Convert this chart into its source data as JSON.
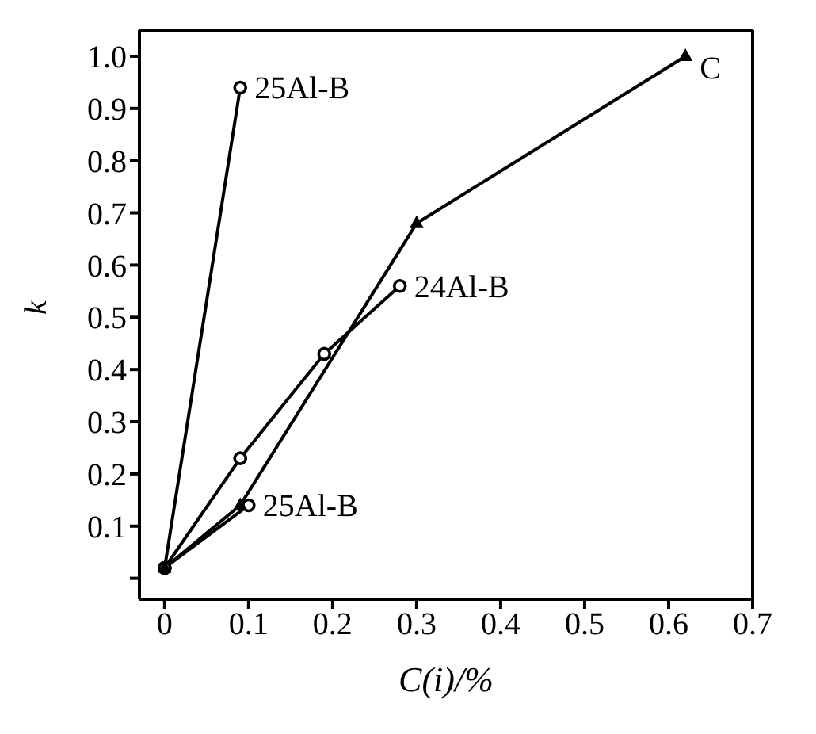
{
  "chart_data": {
    "type": "line",
    "xlabel": "C(i)/%",
    "ylabel": "k",
    "xlim": [
      -0.03,
      0.7
    ],
    "xticks": [
      0,
      0.1,
      0.2,
      0.3,
      0.4,
      0.5,
      0.6,
      0.7
    ],
    "ylim": [
      -0.04,
      1.05
    ],
    "yticks": [
      {
        "value": 0,
        "label": null
      },
      0.1,
      0.2,
      0.3,
      0.4,
      0.5,
      0.6,
      0.7,
      0.8,
      0.9,
      {
        "value": 1,
        "label": "1.0"
      }
    ],
    "legend": false,
    "line_style": "solid",
    "series": [
      {
        "name": "25Al-B",
        "color": "#000000",
        "marker": "circle",
        "x": [
          0,
          0.09
        ],
        "values": [
          0.02,
          0.94
        ]
      },
      {
        "name": "24Al-B",
        "color": "#000000",
        "marker": "circle",
        "x": [
          0,
          0.09,
          0.19,
          0.28
        ],
        "values": [
          0.02,
          0.23,
          0.43,
          0.56
        ]
      },
      {
        "name": "25Al-B",
        "color": "#000000",
        "marker": "circle",
        "x": [
          0,
          0.1
        ],
        "values": [
          0.02,
          0.14
        ]
      },
      {
        "name": "C",
        "color": "#000000",
        "marker": "triangle",
        "x": [
          0,
          0.09,
          0.3,
          0.62
        ],
        "values": [
          0.02,
          0.14,
          0.68,
          1.0
        ]
      }
    ]
  }
}
